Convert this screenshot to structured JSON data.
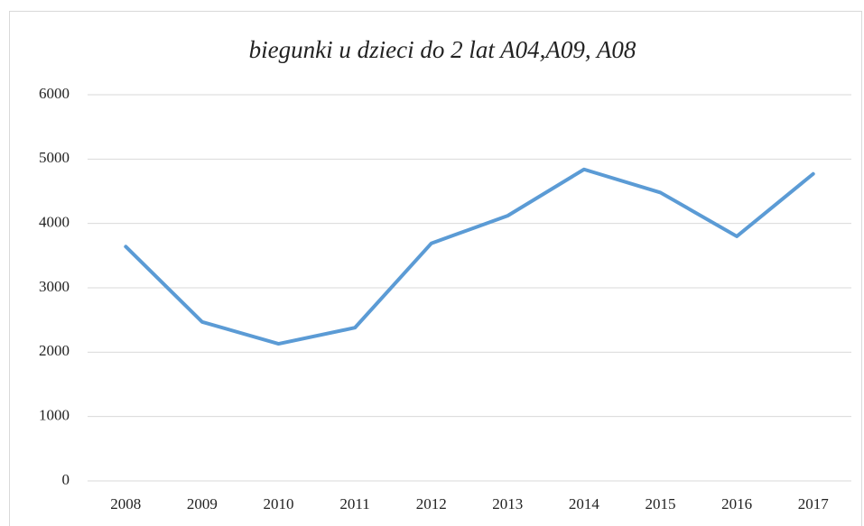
{
  "chart_data": {
    "type": "line",
    "title": "biegunki u dzieci do 2 lat A04,A09, A08",
    "categories": [
      "2008",
      "2009",
      "2010",
      "2011",
      "2012",
      "2013",
      "2014",
      "2015",
      "2016",
      "2017"
    ],
    "series": [
      {
        "name": "biegunki",
        "color": "#5b9bd5",
        "values": [
          3640,
          2470,
          2130,
          2380,
          3690,
          4120,
          4840,
          4480,
          3800,
          4770
        ]
      }
    ],
    "ylim": [
      0,
      6000
    ],
    "yticks": [
      0,
      1000,
      2000,
      3000,
      4000,
      5000,
      6000
    ],
    "grid": true
  }
}
